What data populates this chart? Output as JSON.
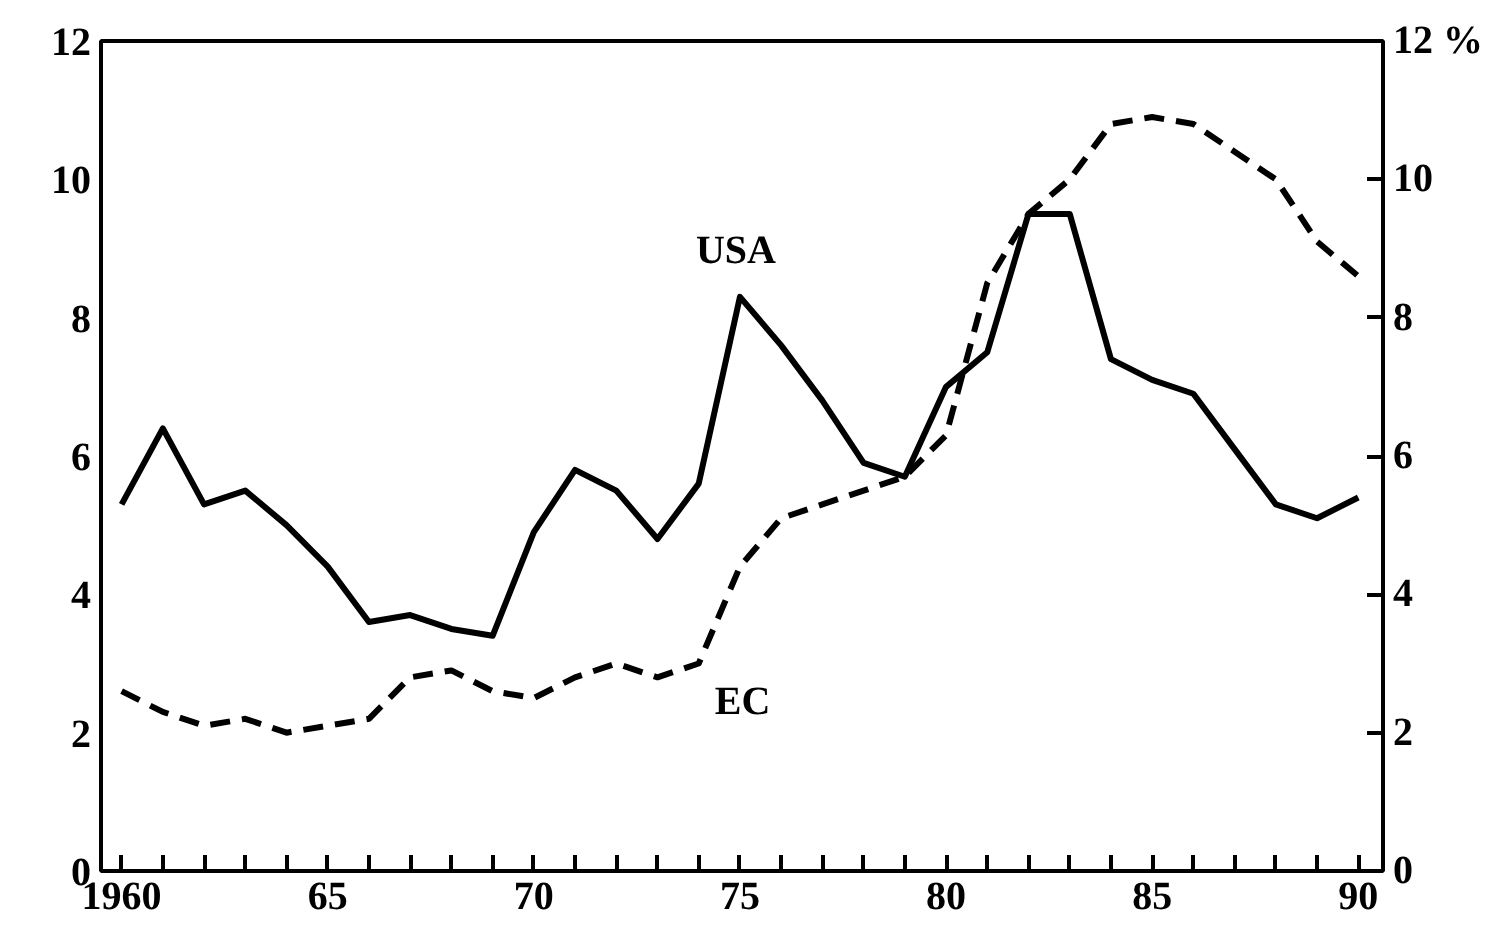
{
  "chart_data": {
    "type": "line",
    "x": [
      1960,
      1961,
      1962,
      1963,
      1964,
      1965,
      1966,
      1967,
      1968,
      1969,
      1970,
      1971,
      1972,
      1973,
      1974,
      1975,
      1976,
      1977,
      1978,
      1979,
      1980,
      1981,
      1982,
      1983,
      1984,
      1985,
      1986,
      1987,
      1988,
      1989,
      1990
    ],
    "series": [
      {
        "name": "USA",
        "color": "#000000",
        "line_style": "solid",
        "values": [
          5.3,
          6.4,
          5.3,
          5.5,
          5.0,
          4.4,
          3.6,
          3.7,
          3.5,
          3.4,
          4.9,
          5.8,
          5.5,
          4.8,
          5.6,
          8.3,
          7.6,
          6.8,
          5.9,
          5.7,
          7.0,
          7.5,
          9.5,
          9.5,
          7.4,
          7.1,
          6.9,
          6.1,
          5.3,
          5.1,
          5.4
        ]
      },
      {
        "name": "EC",
        "color": "#000000",
        "line_style": "dashed",
        "values": [
          2.6,
          2.3,
          2.1,
          2.2,
          2.0,
          2.1,
          2.2,
          2.8,
          2.9,
          2.6,
          2.5,
          2.8,
          3.0,
          2.8,
          3.0,
          4.4,
          5.1,
          5.3,
          5.5,
          5.7,
          6.3,
          8.5,
          9.5,
          10.0,
          10.8,
          10.9,
          10.8,
          10.4,
          10.0,
          9.1,
          8.6
        ]
      }
    ],
    "xlim": [
      1959.5,
      1990.6
    ],
    "xticks": [
      {
        "value": 1960,
        "label": "1960"
      },
      {
        "value": 1961,
        "label": null
      },
      {
        "value": 1962,
        "label": null
      },
      {
        "value": 1963,
        "label": null
      },
      {
        "value": 1964,
        "label": null
      },
      {
        "value": 1965,
        "label": "65"
      },
      {
        "value": 1966,
        "label": null
      },
      {
        "value": 1967,
        "label": null
      },
      {
        "value": 1968,
        "label": null
      },
      {
        "value": 1969,
        "label": null
      },
      {
        "value": 1970,
        "label": "70"
      },
      {
        "value": 1971,
        "label": null
      },
      {
        "value": 1972,
        "label": null
      },
      {
        "value": 1973,
        "label": null
      },
      {
        "value": 1974,
        "label": null
      },
      {
        "value": 1975,
        "label": "75"
      },
      {
        "value": 1976,
        "label": null
      },
      {
        "value": 1977,
        "label": null
      },
      {
        "value": 1978,
        "label": null
      },
      {
        "value": 1979,
        "label": null
      },
      {
        "value": 1980,
        "label": "80"
      },
      {
        "value": 1981,
        "label": null
      },
      {
        "value": 1982,
        "label": null
      },
      {
        "value": 1983,
        "label": null
      },
      {
        "value": 1984,
        "label": null
      },
      {
        "value": 1985,
        "label": "85"
      },
      {
        "value": 1986,
        "label": null
      },
      {
        "value": 1987,
        "label": null
      },
      {
        "value": 1988,
        "label": null
      },
      {
        "value": 1989,
        "label": null
      },
      {
        "value": 1990,
        "label": "90"
      }
    ],
    "ylim": [
      0,
      12
    ],
    "yticks": [
      0,
      2,
      4,
      6,
      8,
      10,
      12
    ],
    "y2lim": [
      0,
      12
    ],
    "y2ticks": [
      0,
      2,
      4,
      6,
      8,
      10,
      {
        "value": 12,
        "label": "12 %"
      }
    ],
    "grid": false,
    "marker": "none"
  }
}
